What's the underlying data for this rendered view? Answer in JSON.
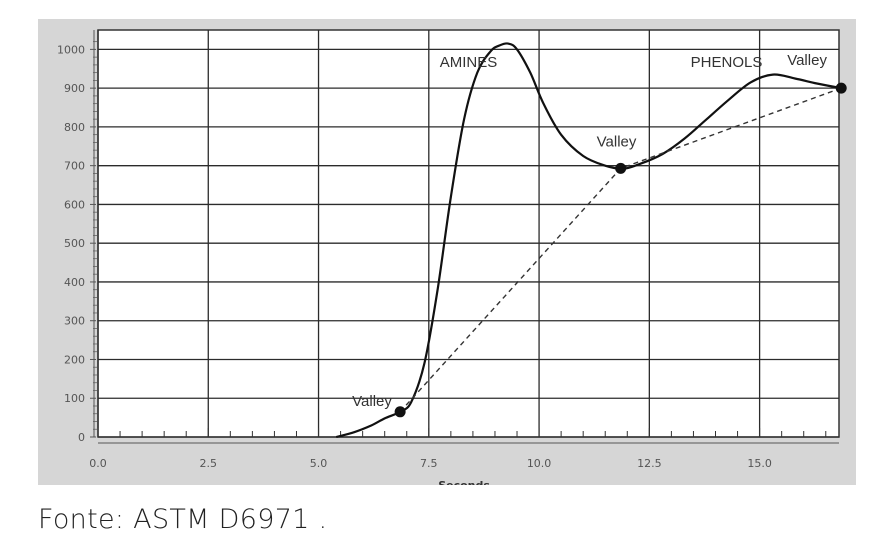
{
  "chart_data": {
    "type": "line",
    "xlabel": "Seconds",
    "ylabel": "",
    "title": "",
    "xlim": [
      0,
      16.8
    ],
    "ylim": [
      0,
      1050
    ],
    "x_ticks": [
      0,
      2.5,
      5,
      7.5,
      10,
      12.5,
      15
    ],
    "x_tick_labels": [
      "0.0",
      "2.5",
      "5.0",
      "7.5",
      "10.0",
      "12.5",
      "15.0"
    ],
    "y_ticks": [
      0,
      100,
      200,
      300,
      400,
      500,
      600,
      700,
      800,
      900,
      1000
    ],
    "y_tick_labels": [
      "0",
      "100",
      "200",
      "300",
      "400",
      "500",
      "600",
      "700",
      "800",
      "900",
      "1000"
    ],
    "grid": true,
    "series": [
      {
        "style": "solid",
        "x": [
          5.4,
          5.8,
          6.2,
          6.5,
          6.85,
          7.1,
          7.4,
          7.7,
          8.0,
          8.3,
          8.6,
          8.9,
          9.1,
          9.3,
          9.5,
          9.8,
          10.1,
          10.5,
          11.0,
          11.5,
          11.9,
          12.3,
          12.8,
          13.3,
          13.8,
          14.3,
          14.8,
          15.3,
          15.8,
          16.3,
          16.85
        ],
        "y": [
          0,
          12,
          30,
          48,
          65,
          90,
          190,
          380,
          620,
          820,
          940,
          995,
          1010,
          1015,
          1000,
          940,
          860,
          780,
          725,
          700,
          692,
          705,
          730,
          770,
          820,
          870,
          915,
          935,
          925,
          912,
          900
        ]
      },
      {
        "style": "dashed",
        "x": [
          6.85,
          11.85,
          16.85
        ],
        "y": [
          65,
          693,
          900
        ]
      }
    ],
    "points": [
      {
        "x": 6.85,
        "y": 65,
        "label": "Valley"
      },
      {
        "x": 11.85,
        "y": 693,
        "label": "Valley"
      },
      {
        "x": 16.85,
        "y": 900,
        "label": "Valley"
      }
    ],
    "annotations": [
      {
        "text": "AMINES",
        "x": 8.4,
        "y": 955
      },
      {
        "text": "PHENOLS",
        "x": 14.25,
        "y": 955
      }
    ]
  },
  "caption": "Fonte: ASTM D6971 ."
}
